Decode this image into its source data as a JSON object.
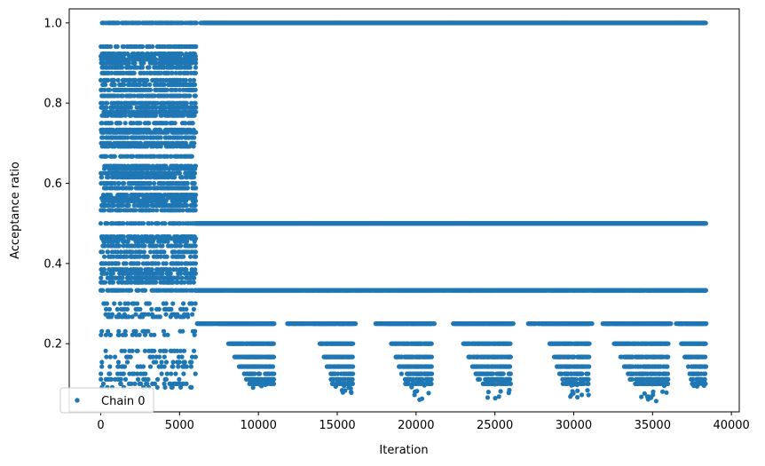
{
  "chart_data": {
    "type": "scatter",
    "xlabel": "Iteration",
    "ylabel": "Acceptance ratio",
    "xlim": [
      -2000,
      40500
    ],
    "ylim": [
      0.03,
      1.035
    ],
    "xticks": [
      0,
      5000,
      10000,
      15000,
      20000,
      25000,
      30000,
      35000,
      40000
    ],
    "yticks": [
      0.2,
      0.4,
      0.6,
      0.8,
      1.0
    ],
    "xtick_labels": [
      "0",
      "5000",
      "10000",
      "15000",
      "20000",
      "25000",
      "30000",
      "35000",
      "40000"
    ],
    "ytick_labels": [
      "0.2",
      "0.4",
      "0.6",
      "0.8",
      "1.0"
    ],
    "grid": false,
    "legend_position": "lower-left",
    "series": [
      {
        "name": "Chain 0",
        "color": "#1f77b4",
        "marker": "circle",
        "x_range": [
          0,
          38400
        ],
        "burn_in_end": 6000,
        "plateau_levels": [
          1.0,
          0.5,
          0.333
        ],
        "frequent_levels": [
          0.25,
          0.2,
          0.167,
          0.143,
          0.125,
          0.111,
          0.1
        ],
        "early_phase_levels": [
          0.941,
          0.923,
          0.917,
          0.909,
          0.9,
          0.889,
          0.875,
          0.857,
          0.846,
          0.833,
          0.818,
          0.8,
          0.789,
          0.778,
          0.769,
          0.75,
          0.733,
          0.727,
          0.714,
          0.7,
          0.692,
          0.667,
          0.643,
          0.636,
          0.625,
          0.615,
          0.6,
          0.588,
          0.571,
          0.563,
          0.556,
          0.545,
          0.533,
          0.467,
          0.462,
          0.455,
          0.444,
          0.429,
          0.417,
          0.4,
          0.385,
          0.375,
          0.364,
          0.353,
          0.3,
          0.286,
          0.273,
          0.267,
          0.231,
          0.222,
          0.182,
          0.167,
          0.154,
          0.143,
          0.125,
          0.111,
          0.1,
          0.091
        ],
        "low_value_clusters": [
          {
            "x_range": [
              7500,
              11000
            ],
            "min_y": 0.09
          },
          {
            "x_range": [
              13500,
              16000
            ],
            "min_y": 0.077
          },
          {
            "x_range": [
              18000,
              21000
            ],
            "min_y": 0.059
          },
          {
            "x_range": [
              22500,
              26000
            ],
            "min_y": 0.059
          },
          {
            "x_range": [
              28000,
              31000
            ],
            "min_y": 0.063
          },
          {
            "x_range": [
              32000,
              36000
            ],
            "min_y": 0.056
          },
          {
            "x_range": [
              36500,
              38400
            ],
            "min_y": 0.091
          }
        ]
      }
    ]
  }
}
